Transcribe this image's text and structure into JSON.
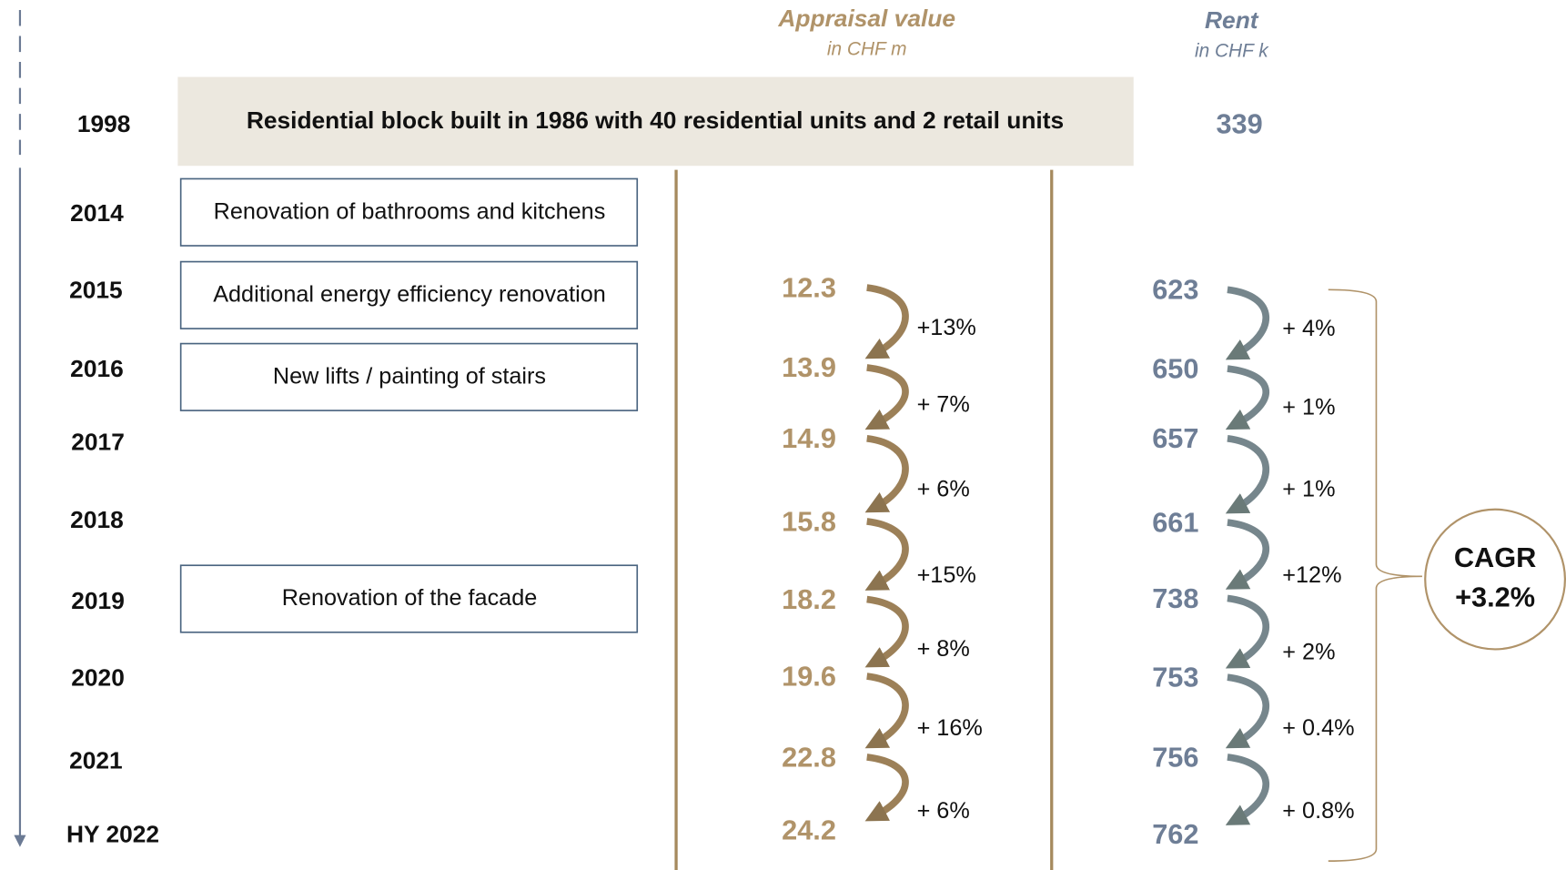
{
  "header": {
    "appraisal_title": "Appraisal value",
    "appraisal_unit": "in CHF m",
    "rent_title": "Rent",
    "rent_unit": "in CHF k"
  },
  "years": [
    "1998",
    "2014",
    "2015",
    "2016",
    "2017",
    "2018",
    "2019",
    "2020",
    "2021",
    "HY 2022"
  ],
  "banner": "Residential block built in 1986 with 40 residential units and 2 retail units",
  "events": [
    "Renovation of bathrooms and kitchens",
    "Additional energy efficiency renovation",
    "New lifts / painting of stairs",
    "Renovation of the facade"
  ],
  "appraisal": {
    "values": [
      "12.3",
      "13.9",
      "14.9",
      "15.8",
      "18.2",
      "19.6",
      "22.8",
      "24.2"
    ],
    "changes": [
      "+13%",
      "+ 7%",
      "+ 6%",
      "+15%",
      "+ 8%",
      "+ 16%",
      "+ 6%"
    ]
  },
  "rent": {
    "initial": "339",
    "values": [
      "623",
      "650",
      "657",
      "661",
      "738",
      "753",
      "756",
      "762"
    ],
    "changes": [
      "+ 4%",
      "+ 1%",
      "+ 1%",
      "+12%",
      "+ 2%",
      "+ 0.4%",
      "+ 0.8%"
    ]
  },
  "cagr": {
    "label": "CAGR",
    "value": "+3.2%"
  }
}
